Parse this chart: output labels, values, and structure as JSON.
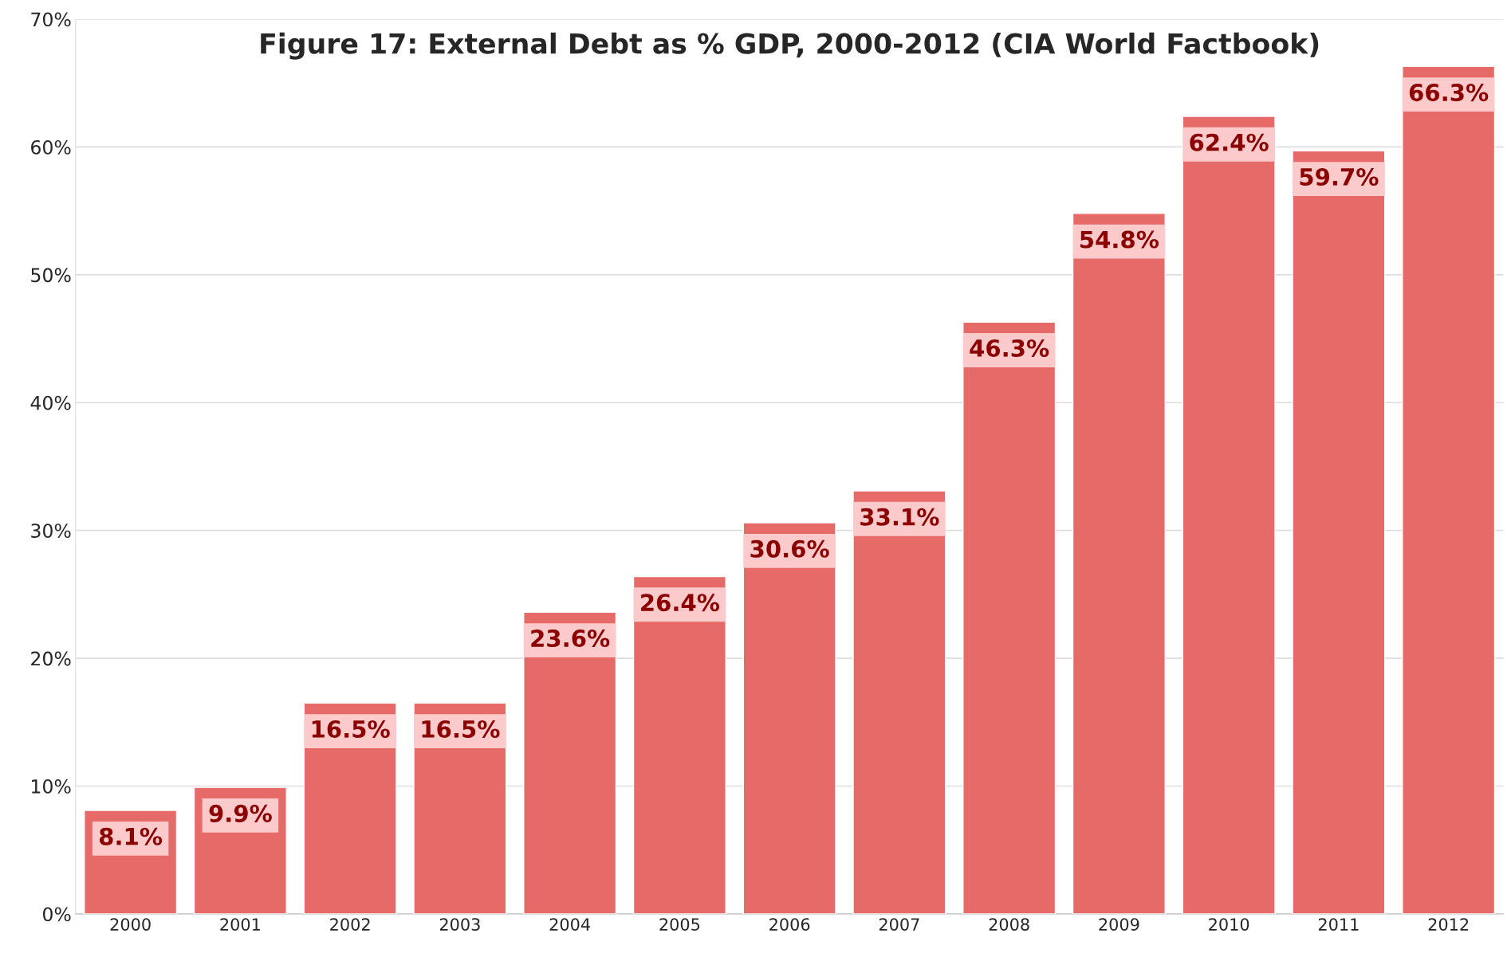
{
  "chart_data": {
    "type": "bar",
    "title": "Figure 17: External Debt as % GDP, 2000-2012 (CIA World Factbook)",
    "categories": [
      "2000",
      "2001",
      "2002",
      "2003",
      "2004",
      "2005",
      "2006",
      "2007",
      "2008",
      "2009",
      "2010",
      "2011",
      "2012"
    ],
    "values": [
      8.1,
      9.9,
      16.5,
      16.5,
      23.6,
      26.4,
      30.6,
      33.1,
      46.3,
      54.8,
      62.4,
      59.7,
      66.3
    ],
    "value_labels": [
      "8.1%",
      "9.9%",
      "16.5%",
      "16.5%",
      "23.6%",
      "26.4%",
      "30.6%",
      "33.1%",
      "46.3%",
      "54.8%",
      "62.4%",
      "59.7%",
      "66.3%"
    ],
    "color": "#e56a68",
    "ylim": [
      0,
      70
    ],
    "yticks": [
      {
        "value": 0,
        "label": "0%"
      },
      {
        "value": 10,
        "label": "10%"
      },
      {
        "value": 20,
        "label": "20%"
      },
      {
        "value": 30,
        "label": "30%"
      },
      {
        "value": 40,
        "label": "40%"
      },
      {
        "value": 50,
        "label": "50%"
      },
      {
        "value": 60,
        "label": "60%"
      },
      {
        "value": 70,
        "label": "70%"
      }
    ],
    "grid": "y"
  }
}
